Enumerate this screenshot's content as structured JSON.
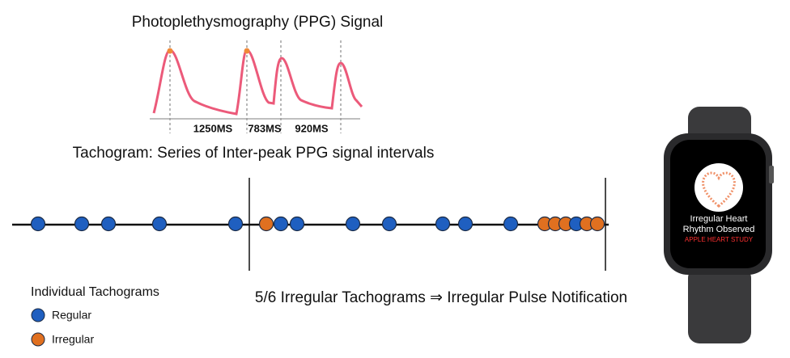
{
  "ppg": {
    "title": "Photoplethysmography (PPG) Signal",
    "intervals": [
      "1250MS",
      "783MS",
      "920MS"
    ]
  },
  "tachogram": {
    "title": "Tachogram: Series of Inter-peak PPG signal intervals"
  },
  "legend": {
    "title": "Individual Tachograms",
    "regular": "Regular",
    "irregular": "Irregular"
  },
  "conclusion": "5/6 Irregular Tachograms ⇒ Irregular Pulse Notification",
  "watch": {
    "line1": "Irregular Heart",
    "line2": "Rhythm Observed",
    "line3": "APPLE HEART STUDY"
  }
}
